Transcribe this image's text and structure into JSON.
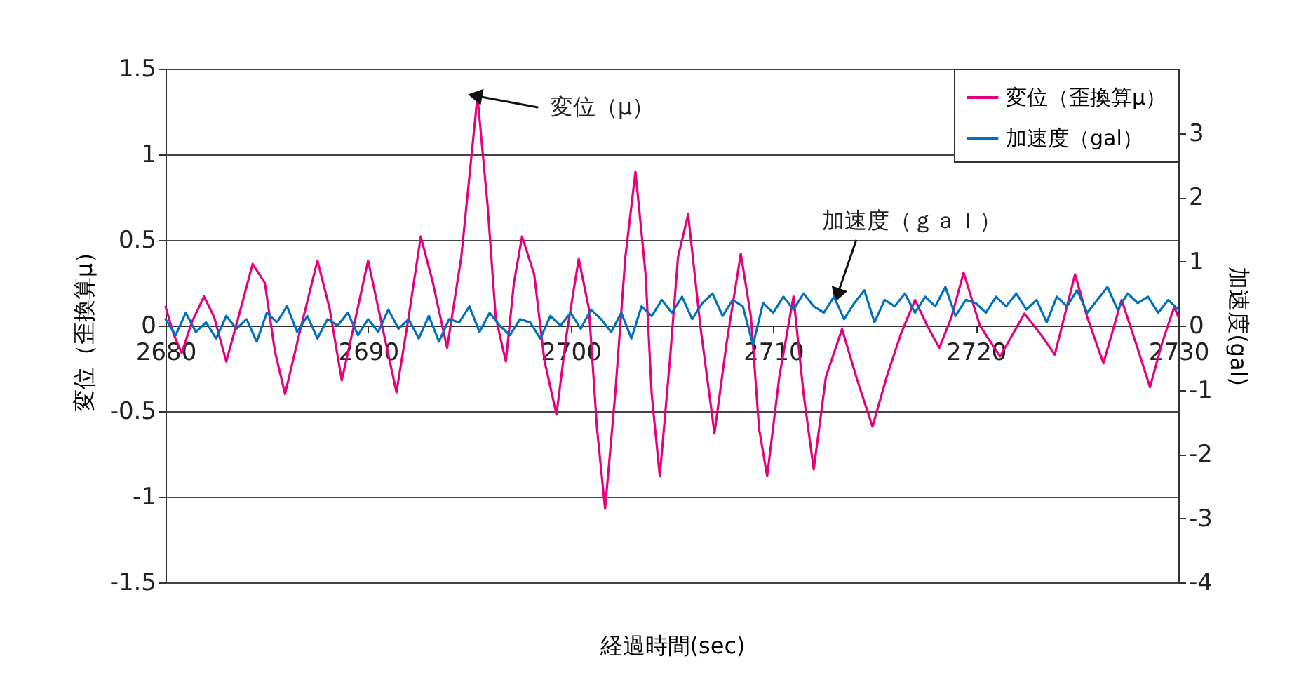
{
  "chart_data": {
    "type": "line",
    "xlabel": "経過時間(sec)",
    "ylabel": "変位（歪換算μ）",
    "y2label": "加速度(gal)",
    "xlim": [
      2680,
      2730
    ],
    "xticks": [
      2680,
      2690,
      2700,
      2710,
      2720,
      2730
    ],
    "ylim": [
      -1.5,
      1.5
    ],
    "yticks": [
      -1.5,
      -1,
      -0.5,
      0,
      0.5,
      1,
      1.5
    ],
    "y2lim": [
      -4,
      4
    ],
    "y2ticks": [
      -4,
      -3,
      -2,
      -1,
      0,
      1,
      2,
      3
    ],
    "grid": "y",
    "legend": "top right",
    "annotations": [
      {
        "text": "変位（μ）",
        "x": 2695.4,
        "y": 1.34
      },
      {
        "text": "加速度（ｇａｌ）",
        "x": 2713.2,
        "y": 0.19
      }
    ],
    "series": [
      {
        "name": "変位（歪換算μ）",
        "color": "#e6007e",
        "x": [
          2680.0,
          2680.4,
          2680.8,
          2681.3,
          2681.9,
          2682.4,
          2683.0,
          2683.6,
          2684.3,
          2684.9,
          2685.4,
          2685.9,
          2686.6,
          2687.5,
          2688.1,
          2688.7,
          2689.3,
          2690.0,
          2690.6,
          2691.4,
          2692.0,
          2692.6,
          2693.2,
          2693.9,
          2694.6,
          2695.4,
          2695.9,
          2696.3,
          2696.8,
          2697.2,
          2697.6,
          2698.2,
          2698.7,
          2699.3,
          2699.8,
          2700.4,
          2700.9,
          2701.3,
          2701.7,
          2702.2,
          2702.7,
          2703.2,
          2703.7,
          2704.0,
          2704.4,
          2704.9,
          2705.3,
          2705.8,
          2706.4,
          2707.1,
          2707.7,
          2708.4,
          2708.9,
          2709.3,
          2709.7,
          2710.3,
          2711.0,
          2711.5,
          2712.0,
          2712.6,
          2713.4,
          2714.1,
          2714.9,
          2715.6,
          2716.3,
          2717.0,
          2717.6,
          2718.2,
          2718.8,
          2719.4,
          2720.2,
          2721.2,
          2722.4,
          2723.2,
          2723.9,
          2724.9,
          2725.5,
          2726.3,
          2727.2,
          2727.9,
          2728.6,
          2729.2,
          2729.8,
          2730.0
        ],
        "values": [
          0.11,
          -0.05,
          -0.16,
          0.02,
          0.17,
          0.05,
          -0.21,
          0.05,
          0.36,
          0.25,
          -0.15,
          -0.4,
          -0.05,
          0.38,
          0.1,
          -0.32,
          0.0,
          0.38,
          0.05,
          -0.39,
          0.05,
          0.52,
          0.25,
          -0.13,
          0.4,
          1.34,
          0.7,
          0.05,
          -0.21,
          0.25,
          0.52,
          0.3,
          -0.2,
          -0.52,
          -0.05,
          0.39,
          0.1,
          -0.6,
          -1.07,
          -0.4,
          0.4,
          0.9,
          0.3,
          -0.4,
          -0.88,
          -0.2,
          0.4,
          0.65,
          0.0,
          -0.63,
          -0.1,
          0.42,
          0.05,
          -0.6,
          -0.88,
          -0.3,
          0.17,
          -0.4,
          -0.84,
          -0.3,
          -0.02,
          -0.3,
          -0.59,
          -0.3,
          -0.05,
          0.15,
          0.0,
          -0.13,
          0.05,
          0.31,
          0.0,
          -0.18,
          0.07,
          -0.05,
          -0.17,
          0.3,
          0.05,
          -0.22,
          0.15,
          -0.1,
          -0.36,
          -0.1,
          0.11,
          0.05
        ]
      },
      {
        "name": "加速度（gal）",
        "color": "#0070c0",
        "axis": "y2",
        "x": [
          2680,
          2680.5,
          2681,
          2681.5,
          2682,
          2682.5,
          2683,
          2683.5,
          2684,
          2684.5,
          2685,
          2685.5,
          2686,
          2686.5,
          2687,
          2687.5,
          2688,
          2688.5,
          2689,
          2689.5,
          2690,
          2690.5,
          2691,
          2691.5,
          2692,
          2692.5,
          2693,
          2693.5,
          2694,
          2694.5,
          2695,
          2695.5,
          2696,
          2696.5,
          2697,
          2697.5,
          2698,
          2698.5,
          2699,
          2699.5,
          2700,
          2700.5,
          2701,
          2701.5,
          2702,
          2702.5,
          2703,
          2703.5,
          2704,
          2704.5,
          2705,
          2705.5,
          2706,
          2706.5,
          2707,
          2707.5,
          2708,
          2708.5,
          2709,
          2709.5,
          2710,
          2710.5,
          2711,
          2711.5,
          2712,
          2712.5,
          2713,
          2713.5,
          2714,
          2714.5,
          2715,
          2715.5,
          2716,
          2716.5,
          2717,
          2717.5,
          2718,
          2718.5,
          2719,
          2719.5,
          2720,
          2720.5,
          2721,
          2721.5,
          2722,
          2722.5,
          2723,
          2723.5,
          2724,
          2724.5,
          2725,
          2725.5,
          2726,
          2726.5,
          2727,
          2727.5,
          2728,
          2728.5,
          2729,
          2729.5,
          2730
        ],
        "values": [
          0.1,
          -0.15,
          0.2,
          -0.1,
          0.05,
          -0.2,
          0.15,
          -0.05,
          0.1,
          -0.25,
          0.2,
          0.05,
          0.3,
          -0.1,
          0.15,
          -0.2,
          0.1,
          0.0,
          0.2,
          -0.15,
          0.1,
          -0.1,
          0.25,
          -0.05,
          0.1,
          -0.2,
          0.15,
          -0.25,
          0.1,
          0.05,
          0.3,
          -0.1,
          0.2,
          0.0,
          -0.15,
          0.1,
          0.05,
          -0.2,
          0.15,
          0.0,
          0.2,
          -0.05,
          0.25,
          0.1,
          -0.1,
          0.2,
          -0.2,
          0.3,
          0.15,
          0.4,
          0.2,
          0.45,
          0.1,
          0.35,
          0.5,
          0.15,
          0.4,
          0.3,
          -0.3,
          0.35,
          0.2,
          0.45,
          0.25,
          0.5,
          0.3,
          0.2,
          0.45,
          0.1,
          0.35,
          0.55,
          0.05,
          0.4,
          0.3,
          0.5,
          0.2,
          0.45,
          0.3,
          0.6,
          0.15,
          0.4,
          0.35,
          0.2,
          0.45,
          0.3,
          0.5,
          0.25,
          0.4,
          0.05,
          0.45,
          0.3,
          0.55,
          0.2,
          0.4,
          0.6,
          0.25,
          0.5,
          0.35,
          0.45,
          0.2,
          0.4,
          0.25
        ]
      }
    ]
  }
}
